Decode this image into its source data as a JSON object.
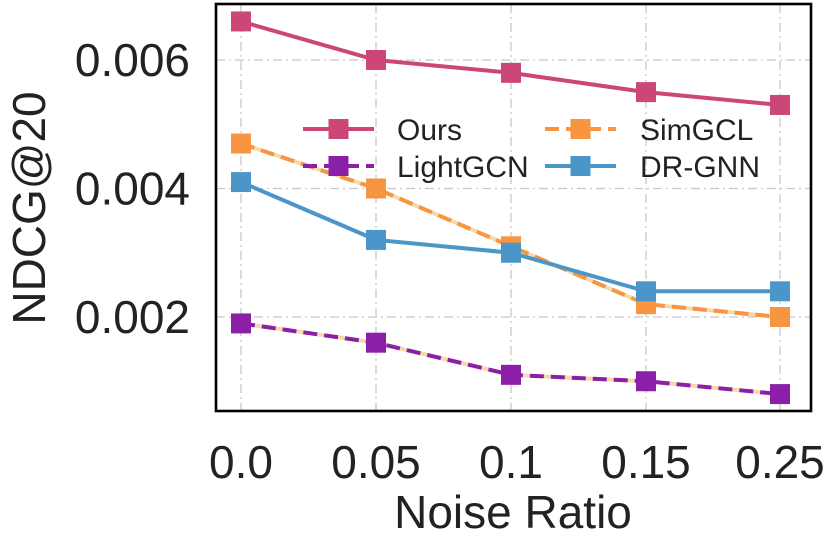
{
  "chart_data": {
    "type": "line",
    "xlabel": "Noise Ratio",
    "ylabel": "NDCG@20",
    "categories": [
      "0.0",
      "0.05",
      "0.1",
      "0.15",
      "0.25"
    ],
    "yticks": [
      "0.002",
      "0.004",
      "0.006"
    ],
    "ytick_values": [
      0.002,
      0.004,
      0.006
    ],
    "ylim": [
      0.00055,
      0.0069
    ],
    "grid": true,
    "legend_position": "upper-right, two columns",
    "series": [
      {
        "name": "Ours",
        "values": [
          0.0066,
          0.006,
          0.0058,
          0.0055,
          0.0053
        ],
        "color": "#cc4778",
        "line_style": "solid",
        "marker": "square"
      },
      {
        "name": "SimGCL",
        "values": [
          0.0047,
          0.004,
          0.0031,
          0.0022,
          0.002
        ],
        "color": "#f89540",
        "line_style": "dashed",
        "marker": "square"
      },
      {
        "name": "LightGCN",
        "values": [
          0.0019,
          0.0016,
          0.0011,
          0.001,
          0.0008
        ],
        "color": "#8b1fa8",
        "line_style": "dashed",
        "marker": "square"
      },
      {
        "name": "DR-GNN",
        "values": [
          0.0041,
          0.0032,
          0.003,
          0.0024,
          0.0024
        ],
        "color": "#4b96c8",
        "line_style": "solid",
        "marker": "square"
      }
    ],
    "legend_order": [
      "Ours",
      "SimGCL",
      "LightGCN",
      "DR-GNN"
    ]
  }
}
